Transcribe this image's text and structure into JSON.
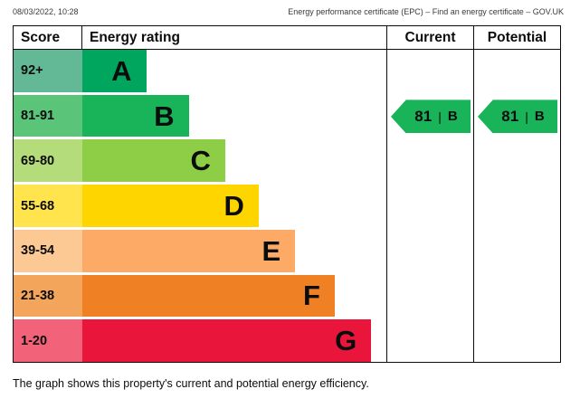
{
  "print_header": {
    "datetime": "08/03/2022, 10:28",
    "title": "Energy performance certificate (EPC) – Find an energy certificate – GOV.UK"
  },
  "table_headers": {
    "score": "Score",
    "energy_rating": "Energy rating",
    "current": "Current",
    "potential": "Potential"
  },
  "chart_data": {
    "type": "bar",
    "subtype": "epc-energy-rating",
    "title": "",
    "columns": [
      "Score",
      "Energy rating",
      "Current",
      "Potential"
    ],
    "bands": [
      {
        "score": "92+",
        "letter": "A",
        "band_color": "#00a65d",
        "score_color": "#63b995",
        "width_pct": 21
      },
      {
        "score": "81-91",
        "letter": "B",
        "band_color": "#19b459",
        "score_color": "#5ac578",
        "width_pct": 35
      },
      {
        "score": "69-80",
        "letter": "C",
        "band_color": "#8dce46",
        "score_color": "#b4dc7a",
        "width_pct": 47
      },
      {
        "score": "55-68",
        "letter": "D",
        "band_color": "#ffd500",
        "score_color": "#ffe44d",
        "width_pct": 58
      },
      {
        "score": "39-54",
        "letter": "E",
        "band_color": "#fcaa65",
        "score_color": "#fcc894",
        "width_pct": 70
      },
      {
        "score": "21-38",
        "letter": "F",
        "band_color": "#ef8023",
        "score_color": "#f3a55c",
        "width_pct": 83
      },
      {
        "score": "1-20",
        "letter": "G",
        "band_color": "#e9153b",
        "score_color": "#f2637a",
        "width_pct": 95
      }
    ],
    "current": {
      "value": 81,
      "letter": "B"
    },
    "potential": {
      "value": 81,
      "letter": "B"
    },
    "divider": "|"
  },
  "footer": {
    "caption": "The graph shows this property's current and potential energy efficiency."
  }
}
